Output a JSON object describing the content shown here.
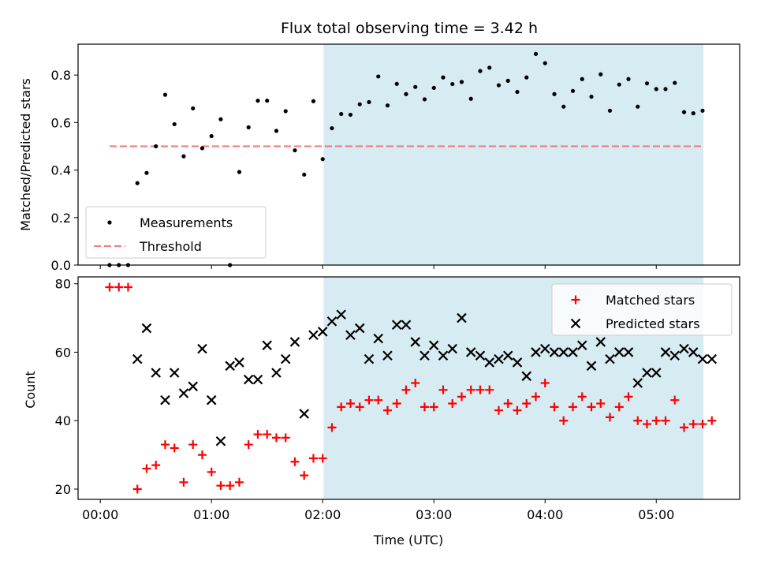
{
  "chart_data": {
    "title": "Flux total observing time = 3.42 h",
    "xlabel": "Time (UTC)",
    "x_unit": "minutes since 00:00 UTC",
    "xlim": [
      -12,
      345
    ],
    "x_ticks": [
      0,
      60,
      120,
      180,
      240,
      300
    ],
    "x_tick_labels": [
      "00:00",
      "01:00",
      "02:00",
      "03:00",
      "04:00",
      "05:00"
    ],
    "highlight_span": [
      120.5,
      325.5
    ],
    "colors": {
      "highlight": "#add8e6",
      "threshold": "#f08080",
      "matched": "#ff0000",
      "predicted": "#000000",
      "measurement": "#000000"
    },
    "panels": [
      {
        "type": "scatter",
        "ylabel": "Matched/Predicted stars",
        "ylim": [
          0,
          0.93
        ],
        "y_ticks": [
          0.0,
          0.2,
          0.4,
          0.6,
          0.8
        ],
        "y_tick_labels": [
          "0.0",
          "0.2",
          "0.4",
          "0.6",
          "0.8"
        ],
        "legend_position": "lower-left",
        "legend": [
          {
            "label": "Measurements",
            "marker": "dot"
          },
          {
            "label": "Threshold",
            "marker": "dashed-line"
          }
        ],
        "threshold": {
          "value": 0.5,
          "x_range": [
            5,
            325
          ]
        },
        "series": [
          {
            "name": "Measurements",
            "marker": "dot",
            "x": [
              5,
              10,
              15,
              20,
              25,
              30,
              35,
              40,
              45,
              50,
              55,
              60,
              65,
              70,
              75,
              80,
              85,
              90,
              95,
              100,
              105,
              110,
              115,
              120,
              125,
              130,
              135,
              140,
              145,
              150,
              155,
              160,
              165,
              170,
              175,
              180,
              185,
              190,
              195,
              200,
              205,
              210,
              215,
              220,
              225,
              230,
              235,
              240,
              245,
              250,
              255,
              260,
              265,
              270,
              275,
              280,
              285,
              290,
              295,
              300,
              305,
              310,
              315,
              320,
              325
            ],
            "y": [
              0.0,
              0.0,
              0.0,
              0.345,
              0.388,
              0.5,
              0.717,
              0.593,
              0.458,
              0.66,
              0.492,
              0.543,
              0.614,
              0.0,
              0.392,
              0.58,
              0.692,
              0.692,
              0.565,
              0.648,
              0.483,
              0.381,
              0.69,
              0.446,
              0.576,
              0.636,
              0.633,
              0.677,
              0.686,
              0.794,
              0.672,
              0.763,
              0.72,
              0.75,
              0.698,
              0.746,
              0.79,
              0.762,
              0.771,
              0.7,
              0.817,
              0.831,
              0.757,
              0.776,
              0.729,
              0.79,
              0.889,
              0.85,
              0.72,
              0.667,
              0.733,
              0.783,
              0.709,
              0.803,
              0.65,
              0.76,
              0.783,
              0.667,
              0.765,
              0.741,
              0.741,
              0.767,
              0.644,
              0.639,
              0.65
            ]
          }
        ]
      },
      {
        "type": "scatter",
        "ylabel": "Count",
        "ylim": [
          17,
          82
        ],
        "y_ticks": [
          20,
          40,
          60,
          80
        ],
        "y_tick_labels": [
          "20",
          "40",
          "60",
          "80"
        ],
        "legend_position": "upper-right",
        "legend": [
          {
            "label": "Matched stars",
            "marker": "plus"
          },
          {
            "label": "Predicted stars",
            "marker": "x"
          }
        ],
        "series": [
          {
            "name": "Matched stars",
            "marker": "plus",
            "x": [
              5,
              10,
              15,
              20,
              25,
              30,
              35,
              40,
              45,
              50,
              55,
              60,
              65,
              70,
              75,
              80,
              85,
              90,
              95,
              100,
              105,
              110,
              115,
              120,
              125,
              130,
              135,
              140,
              145,
              150,
              155,
              160,
              165,
              170,
              175,
              180,
              185,
              190,
              195,
              200,
              205,
              210,
              215,
              220,
              225,
              230,
              235,
              240,
              245,
              250,
              255,
              260,
              265,
              270,
              275,
              280,
              285,
              290,
              295,
              300,
              305,
              310,
              315,
              320,
              325,
              330
            ],
            "y": [
              79,
              79,
              79,
              20,
              26,
              27,
              33,
              32,
              22,
              33,
              30,
              25,
              21,
              21,
              22,
              33,
              36,
              36,
              35,
              35,
              28,
              24,
              29,
              29,
              38,
              44,
              45,
              44,
              46,
              46,
              43,
              45,
              49,
              51,
              44,
              44,
              49,
              45,
              47,
              49,
              49,
              49,
              43,
              45,
              43,
              45,
              47,
              51,
              44,
              40,
              44,
              47,
              44,
              45,
              41,
              44,
              47,
              40,
              39,
              40,
              40,
              46,
              38,
              39,
              39,
              40
            ]
          },
          {
            "name": "Predicted stars",
            "marker": "x",
            "x": [
              20,
              25,
              30,
              35,
              40,
              45,
              50,
              55,
              60,
              65,
              70,
              75,
              80,
              85,
              90,
              95,
              100,
              105,
              110,
              115,
              120,
              125,
              130,
              135,
              140,
              145,
              150,
              155,
              160,
              165,
              170,
              175,
              180,
              185,
              190,
              195,
              200,
              205,
              210,
              215,
              220,
              225,
              230,
              235,
              240,
              245,
              250,
              255,
              260,
              265,
              270,
              275,
              280,
              285,
              290,
              295,
              300,
              305,
              310,
              315,
              320,
              325,
              330
            ],
            "y": [
              58,
              67,
              54,
              46,
              54,
              48,
              50,
              61,
              46,
              34,
              56,
              57,
              52,
              52,
              62,
              54,
              58,
              63,
              42,
              65,
              66,
              69,
              71,
              65,
              67,
              58,
              64,
              59,
              68,
              68,
              63,
              59,
              62,
              59,
              61,
              70,
              60,
              59,
              57,
              58,
              59,
              57,
              53,
              60,
              61,
              60,
              60,
              60,
              62,
              56,
              63,
              58,
              60,
              60,
              51,
              54,
              54,
              60,
              59,
              61,
              60,
              58,
              58
            ]
          }
        ]
      }
    ]
  }
}
